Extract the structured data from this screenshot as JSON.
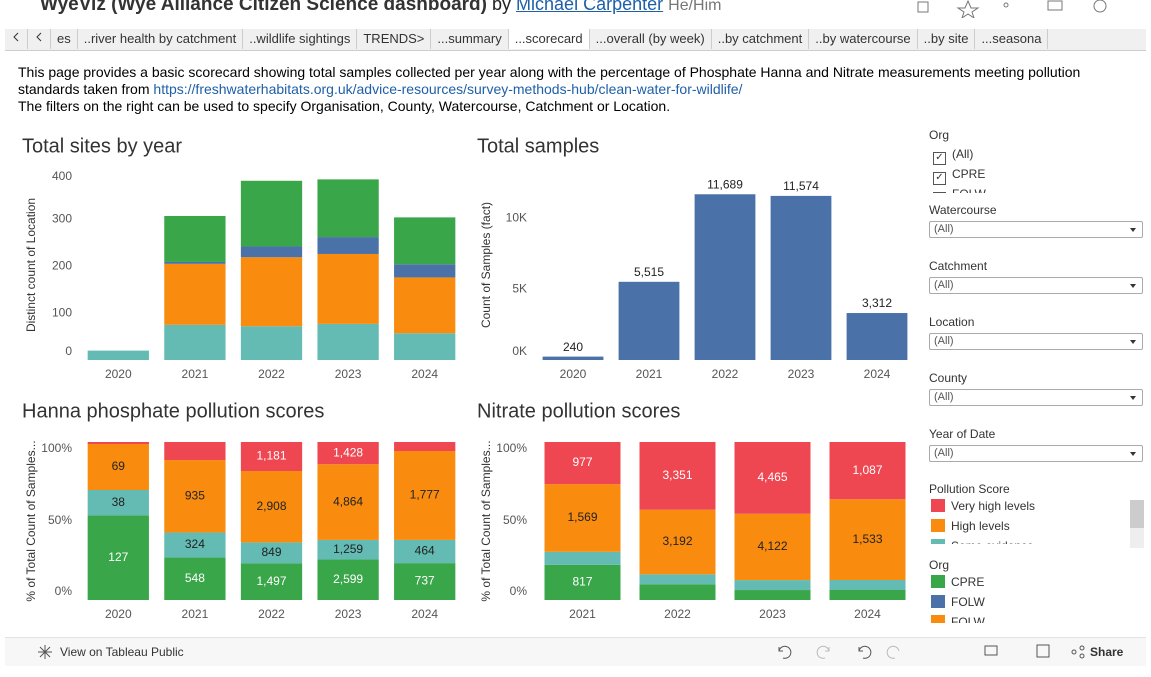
{
  "header": {
    "title": "WyeViz (Wye Alliance Citizen Science dashboard)",
    "by": "by",
    "author": "Michael Carpenter",
    "pronouns": "He/Him"
  },
  "tabs": [
    "es",
    "..river health by catchment",
    "..wildlife sightings",
    "TRENDS>",
    "...summary",
    "...scorecard",
    "...overall (by week)",
    "..by catchment",
    "..by watercourse",
    "..by site",
    "...seasona"
  ],
  "active_tab": 5,
  "intro": {
    "text": "This page provides a basic scorecard showing total samples collected per year along with the percentage of Phosphate Hanna and Nitrate measurements meeting pollution standards taken from",
    "link": "https://freshwaterhabitats.org.uk/advice-resources/survey-methods-hub/clean-water-for-wildlife/",
    "note": "The filters on the right can be used to specify Organisation, County, Watercourse,  Catchment or Location."
  },
  "chart_data": [
    {
      "type": "stacked-bar",
      "title": "Total sites by year",
      "y_label": "Distinct count of Location",
      "categories": [
        "2020",
        "2021",
        "2022",
        "2023",
        "2024"
      ],
      "series": [
        {
          "color": "#63bbb3",
          "values": [
            20,
            75,
            72,
            77,
            57
          ]
        },
        {
          "color": "#f98c0f",
          "values": [
            null,
            130,
            147,
            149,
            119
          ]
        },
        {
          "color": "#4a72a8",
          "values": [
            null,
            4,
            23,
            36,
            28
          ]
        },
        {
          "color": "#3aa64a",
          "values": [
            null,
            98,
            140,
            123,
            100
          ]
        }
      ],
      "ylim": [
        0,
        405
      ],
      "yticks": [
        0,
        100,
        200,
        300,
        400
      ]
    },
    {
      "type": "bar",
      "title": "Total samples",
      "y_label": "Count of Samples (fact)",
      "categories": [
        "2020",
        "2021",
        "2022",
        "2023",
        "2024"
      ],
      "color": "#4a72a8",
      "values": [
        240,
        5515,
        11689,
        11574,
        3312
      ],
      "value_labels": [
        "240",
        "5,515",
        "11,689",
        "11,574",
        "3,312"
      ],
      "ylim": [
        0,
        13400
      ],
      "yticks": [
        {
          "value": 0,
          "label": "0K"
        },
        {
          "value": 5000,
          "label": "5K"
        },
        {
          "value": 10000,
          "label": "10K"
        }
      ]
    },
    {
      "type": "percent-stacked-bar",
      "title": "Hanna phosphate pollution scores",
      "y_label": "% of Total Count of Samples...",
      "categories": [
        "2020",
        "2021",
        "2022",
        "2023",
        "2024"
      ],
      "series": [
        {
          "color": "#3aa64a",
          "values": [
            127,
            548,
            1497,
            2599,
            737
          ],
          "value_labels": [
            "127",
            "548",
            "1,497",
            "2,599",
            "737"
          ]
        },
        {
          "color": "#63bbb3",
          "values": [
            38,
            324,
            849,
            1259,
            464
          ],
          "value_labels": [
            "38",
            "324",
            "849",
            "1,259",
            "464"
          ]
        },
        {
          "color": "#f98c0f",
          "values": [
            69,
            935,
            2908,
            4864,
            1777
          ],
          "value_labels": [
            "69",
            "935",
            "2,908",
            "4,864",
            "1,777"
          ]
        },
        {
          "color": "#ef4752",
          "values": [
            3,
            233,
            1181,
            1428,
            180
          ],
          "value_labels": [
            null,
            null,
            "1,181",
            "1,428",
            null
          ]
        }
      ],
      "ylim": [
        0,
        100
      ],
      "yticks": [
        {
          "value": 0,
          "label": "0%"
        },
        {
          "value": 50,
          "label": "50%"
        },
        {
          "value": 100,
          "label": "100%"
        }
      ]
    },
    {
      "type": "percent-stacked-bar",
      "title": "Nitrate pollution scores",
      "y_label": "% of Total Count of Samples...",
      "categories": [
        "2021",
        "2022",
        "2023",
        "2024"
      ],
      "series": [
        {
          "color": "#3aa64a",
          "values": [
            817,
            780,
            620,
            190
          ],
          "value_labels": [
            "817",
            null,
            null,
            null
          ]
        },
        {
          "color": "#63bbb3",
          "values": [
            300,
            490,
            620,
            190
          ],
          "value_labels": [
            null,
            null,
            null,
            null
          ]
        },
        {
          "color": "#f98c0f",
          "values": [
            1569,
            3192,
            4122,
            1533
          ],
          "value_labels": [
            "1,569",
            "3,192",
            "4,122",
            "1,533"
          ]
        },
        {
          "color": "#ef4752",
          "values": [
            977,
            3351,
            4465,
            1087
          ],
          "value_labels": [
            "977",
            "3,351",
            "4,465",
            "1,087"
          ]
        }
      ],
      "ylim": [
        0,
        100
      ],
      "yticks": [
        {
          "value": 0,
          "label": "0%"
        },
        {
          "value": 50,
          "label": "50%"
        },
        {
          "value": 100,
          "label": "100%"
        }
      ]
    }
  ],
  "filters": {
    "org": {
      "label": "Org",
      "options": [
        {
          "label": "(All)",
          "checked": true
        },
        {
          "label": "CPRE",
          "checked": true
        },
        {
          "label": "FOLW",
          "checked": true
        }
      ]
    },
    "dropdowns": [
      {
        "label": "Watercourse",
        "value": "(All)"
      },
      {
        "label": "Catchment",
        "value": "(All)"
      },
      {
        "label": "Location",
        "value": "(All)"
      },
      {
        "label": "County",
        "value": "(All)"
      },
      {
        "label": "Year of Date",
        "value": "(All)"
      }
    ],
    "pollution_legend": {
      "label": "Pollution Score",
      "items": [
        {
          "name": "Very high levels",
          "color": "#ef4752"
        },
        {
          "name": "High levels",
          "color": "#f98c0f"
        },
        {
          "name": "Some evidence",
          "color": "#63bbb3"
        }
      ]
    },
    "org_legend": {
      "label": "Org",
      "items": [
        {
          "name": "CPRE",
          "color": "#3aa64a"
        },
        {
          "name": "FOLW",
          "color": "#4a72a8"
        },
        {
          "name": "FOLW",
          "color": "#f98c0f"
        }
      ]
    }
  },
  "footer": {
    "view": "View on Tableau Public",
    "share": "Share"
  }
}
